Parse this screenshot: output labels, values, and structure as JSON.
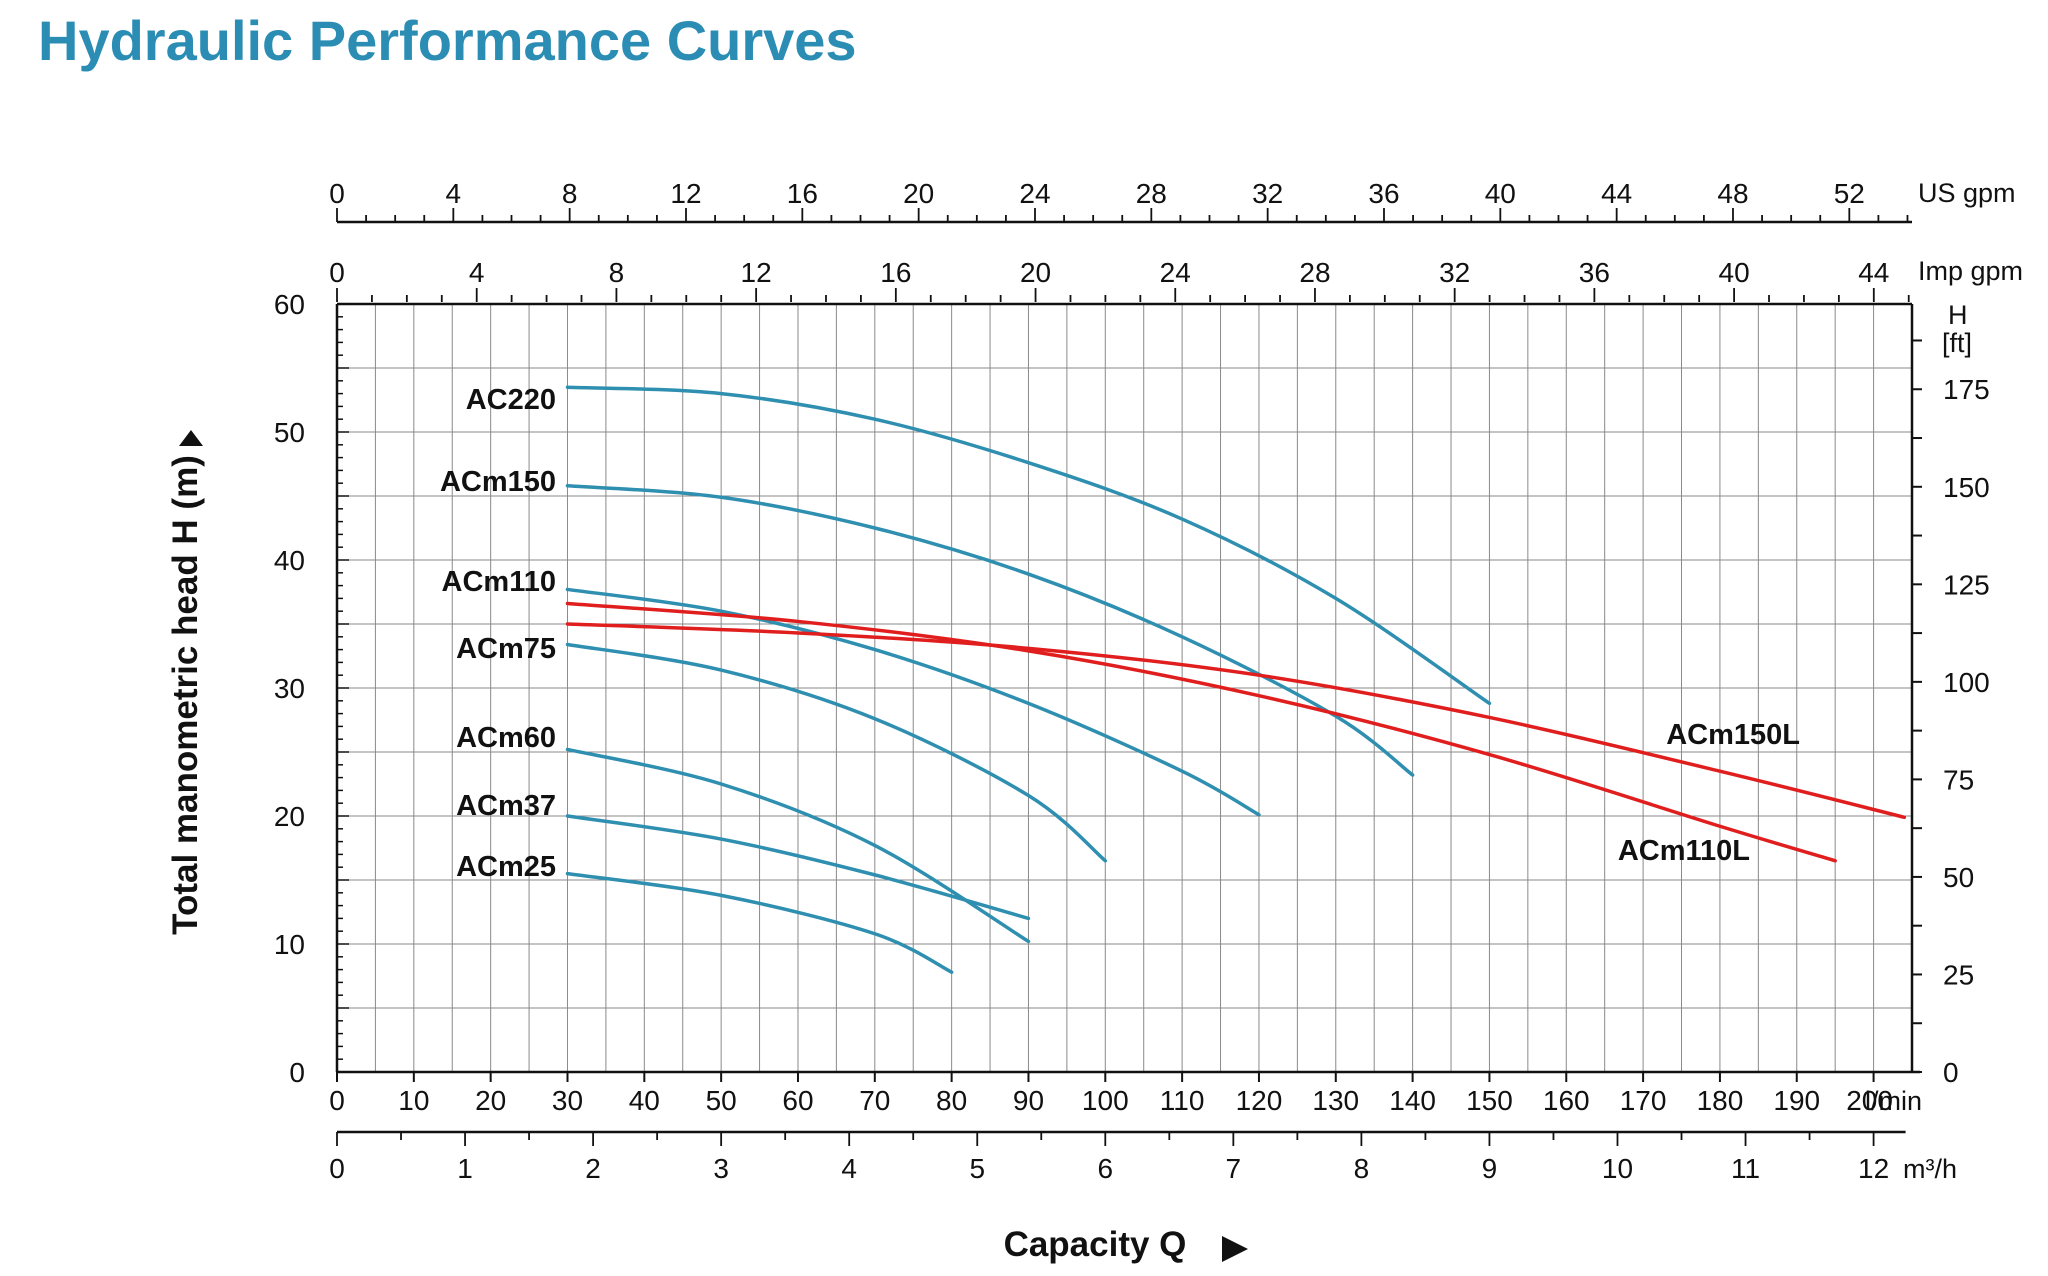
{
  "title": "Hydraulic Performance Curves",
  "chart_data": {
    "type": "line",
    "title": "Hydraulic Performance Curves",
    "xlabel": "Capacity Q",
    "ylabel": "Total manometric head H (m)",
    "x_unit": "l/min",
    "xlim": [
      0,
      205
    ],
    "ylim": [
      0,
      60
    ],
    "grid": true,
    "x_ticks": [
      0,
      10,
      20,
      30,
      40,
      50,
      60,
      70,
      80,
      90,
      100,
      110,
      120,
      130,
      140,
      150,
      160,
      170,
      180,
      190,
      200
    ],
    "y_ticks": [
      0,
      10,
      20,
      30,
      40,
      50,
      60
    ],
    "secondary_axes": {
      "m3h": {
        "unit": "m³/h",
        "ticks": [
          0,
          1,
          2,
          3,
          4,
          5,
          6,
          7,
          8,
          9,
          10,
          11,
          12
        ]
      },
      "us_gpm": {
        "unit": "US gpm",
        "ticks": [
          0,
          4,
          8,
          12,
          16,
          20,
          24,
          28,
          32,
          36,
          40,
          44,
          48,
          52
        ]
      },
      "imp_gpm": {
        "unit": "Imp gpm",
        "ticks": [
          0,
          4,
          8,
          12,
          16,
          20,
          24,
          28,
          32,
          36,
          40,
          44
        ]
      },
      "head_ft": {
        "unit_top": "H",
        "unit_bottom": "[ft]",
        "ticks": [
          0,
          25,
          50,
          75,
          100,
          125,
          150,
          175
        ]
      }
    },
    "colors": {
      "blue": "#2f8fb0",
      "red": "#e01e1e",
      "title": "#2b8db3"
    },
    "series": [
      {
        "name": "AC220",
        "color": "blue",
        "x": [
          30,
          50,
          70,
          90,
          110,
          130,
          150
        ],
        "y": [
          53.5,
          53,
          51,
          47.6,
          43.2,
          37,
          28.8
        ]
      },
      {
        "name": "ACm150",
        "color": "blue",
        "x": [
          30,
          50,
          70,
          90,
          110,
          130,
          140
        ],
        "y": [
          45.8,
          44.9,
          42.5,
          38.9,
          34,
          27.8,
          23.2
        ]
      },
      {
        "name": "ACm110",
        "color": "blue",
        "x": [
          30,
          50,
          70,
          90,
          110,
          120
        ],
        "y": [
          37.7,
          36,
          33,
          28.8,
          23.5,
          20.1
        ]
      },
      {
        "name": "ACm75",
        "color": "blue",
        "x": [
          30,
          50,
          70,
          90,
          100
        ],
        "y": [
          33.4,
          31.4,
          27.6,
          21.6,
          16.5
        ]
      },
      {
        "name": "ACm60",
        "color": "blue",
        "x": [
          30,
          50,
          70,
          90
        ],
        "y": [
          25.2,
          22.5,
          17.7,
          10.2
        ]
      },
      {
        "name": "ACm37",
        "color": "blue",
        "x": [
          30,
          50,
          70,
          90
        ],
        "y": [
          20,
          18.2,
          15.4,
          12
        ]
      },
      {
        "name": "ACm25",
        "color": "blue",
        "x": [
          30,
          50,
          70,
          80
        ],
        "y": [
          15.5,
          13.8,
          10.8,
          7.8
        ]
      },
      {
        "name": "ACm150L",
        "color": "red",
        "x": [
          30,
          60,
          90,
          120,
          150,
          180,
          204
        ],
        "y": [
          35,
          34.3,
          33.1,
          31,
          27.7,
          23.5,
          19.9
        ]
      },
      {
        "name": "ACm110L",
        "color": "red",
        "x": [
          30,
          60,
          90,
          120,
          150,
          180,
          195
        ],
        "y": [
          36.6,
          35.2,
          32.9,
          29.4,
          24.8,
          19.2,
          16.5
        ]
      }
    ]
  }
}
